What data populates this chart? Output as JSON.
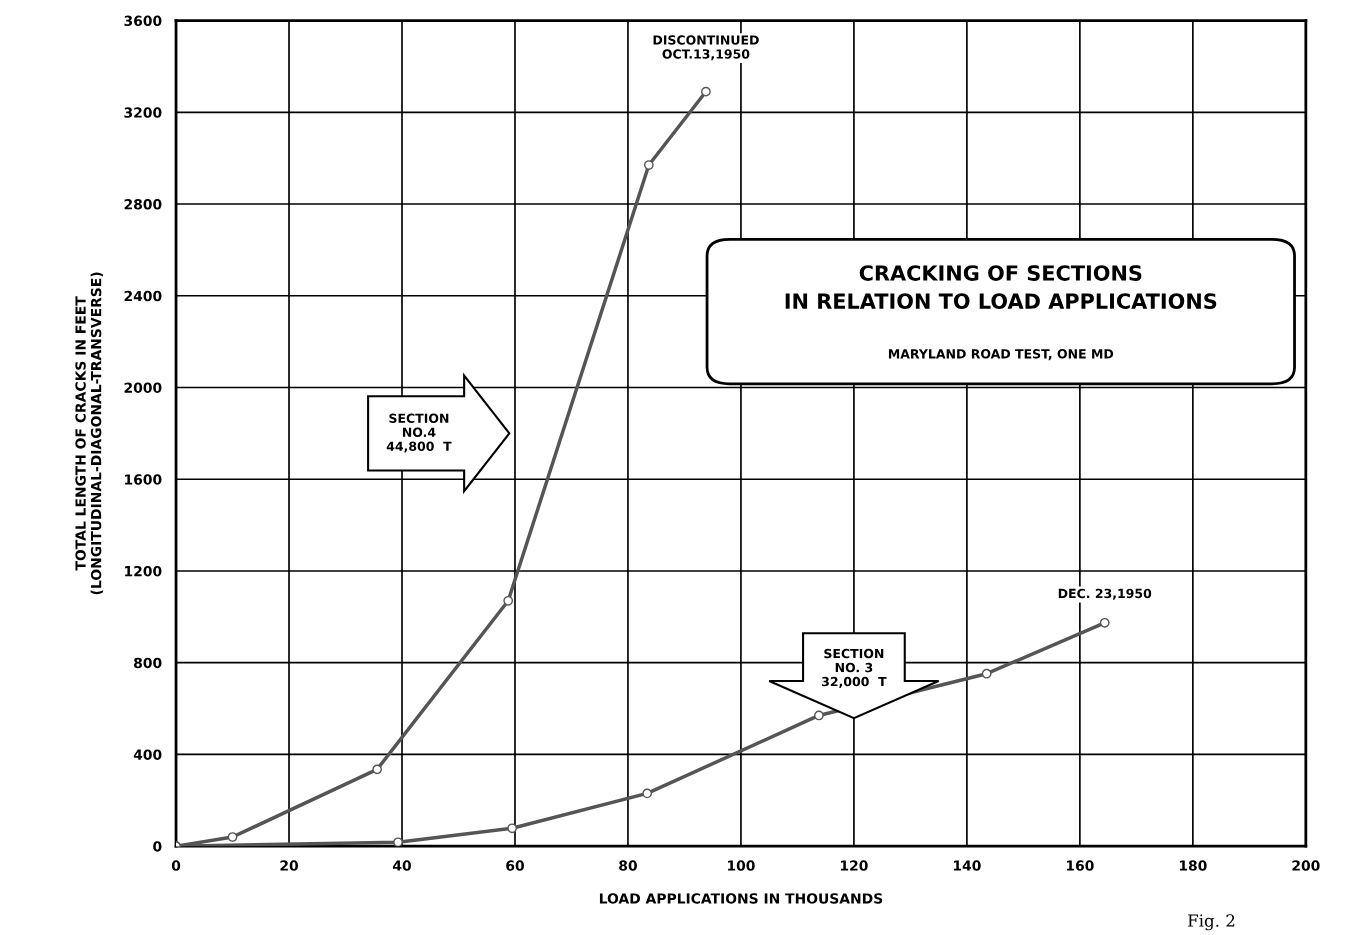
{
  "chart_data": {
    "type": "line",
    "title": "CRACKING OF SECTIONS\nIN RELATION TO LOAD APPLICATIONS",
    "subtitle": "MARYLAND ROAD TEST, ONE MD",
    "xlabel": "LOAD APPLICATIONS IN THOUSANDS",
    "ylabel": "TOTAL LENGTH OF CRACKS IN FEET\n(LONGITUDINAL-DIAGONAL-TRANSVERSE)",
    "series": [
      {
        "color": "#555555",
        "x": [
          0,
          10,
          35.6,
          58.8,
          83.7,
          93.8
        ],
        "values": [
          0,
          40,
          335,
          1070,
          2970,
          3290
        ]
      },
      {
        "color": "#555555",
        "x": [
          0,
          39.3,
          59.5,
          83.4,
          113.8,
          143.5,
          164.4
        ],
        "values": [
          0,
          17,
          78,
          230,
          570,
          752,
          974
        ]
      }
    ],
    "annotations": [
      {
        "text": "DISCONTINUED\nOCT.13,1950",
        "x": 93.8,
        "y": 3290
      },
      {
        "text": "DEC. 23,1950",
        "x": 164.4,
        "y": 974
      },
      "SECTION\nNO.4\n44,800  T",
      "SECTION\nNO. 3\n32,000  T",
      "Fig. 2"
    ],
    "xlim": [
      0,
      200
    ],
    "xticks": [
      0,
      20,
      40,
      60,
      80,
      100,
      120,
      140,
      160,
      180,
      200
    ],
    "ylim": [
      0,
      3600
    ],
    "yticks": [
      0,
      400,
      800,
      1200,
      1600,
      2000,
      2400,
      2800,
      3200,
      3600
    ],
    "grid": true,
    "marker": "circle",
    "line_style": "solid"
  }
}
